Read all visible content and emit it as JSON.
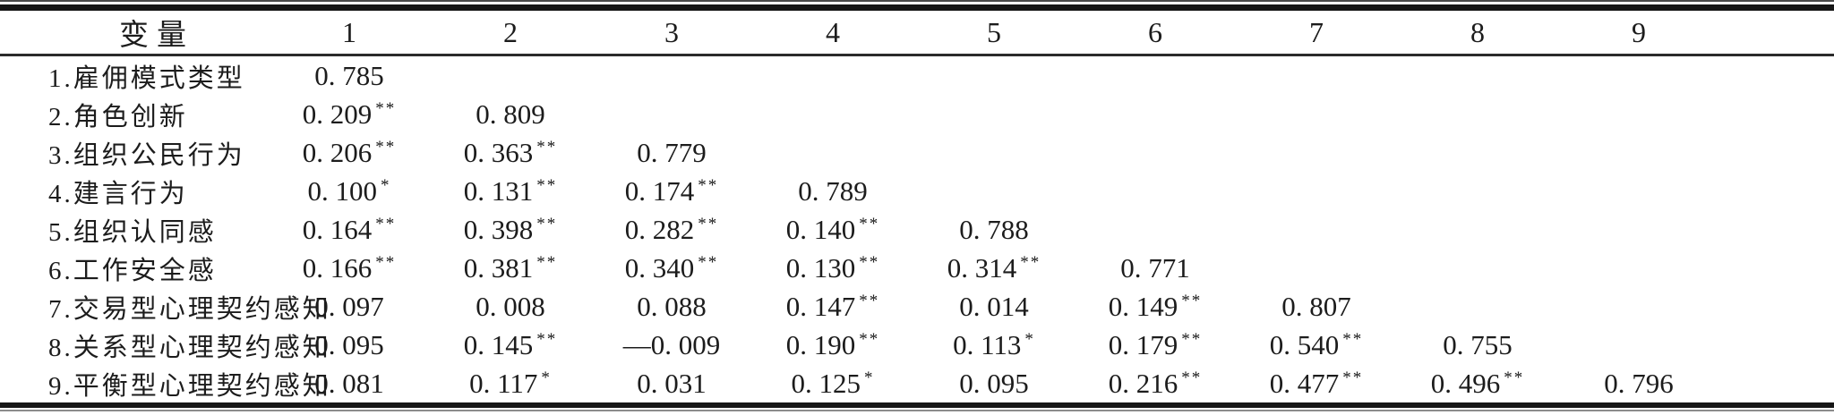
{
  "table": {
    "header": [
      "变量",
      "1",
      "2",
      "3",
      "4",
      "5",
      "6",
      "7",
      "8",
      "9"
    ],
    "rows": [
      {
        "label": "1.雇佣模式类型",
        "cells": [
          {
            "v": "0.785",
            "sig": ""
          }
        ]
      },
      {
        "label": "2.角色创新",
        "cells": [
          {
            "v": "0.209",
            "sig": "**"
          },
          {
            "v": "0.809",
            "sig": ""
          }
        ]
      },
      {
        "label": "3.组织公民行为",
        "cells": [
          {
            "v": "0.206",
            "sig": "**"
          },
          {
            "v": "0.363",
            "sig": "**"
          },
          {
            "v": "0.779",
            "sig": ""
          }
        ]
      },
      {
        "label": "4.建言行为",
        "cells": [
          {
            "v": "0.100",
            "sig": "*"
          },
          {
            "v": "0.131",
            "sig": "**"
          },
          {
            "v": "0.174",
            "sig": "**"
          },
          {
            "v": "0.789",
            "sig": ""
          }
        ]
      },
      {
        "label": "5.组织认同感",
        "cells": [
          {
            "v": "0.164",
            "sig": "**"
          },
          {
            "v": "0.398",
            "sig": "**"
          },
          {
            "v": "0.282",
            "sig": "**"
          },
          {
            "v": "0.140",
            "sig": "**"
          },
          {
            "v": "0.788",
            "sig": ""
          }
        ]
      },
      {
        "label": "6.工作安全感",
        "cells": [
          {
            "v": "0.166",
            "sig": "**"
          },
          {
            "v": "0.381",
            "sig": "**"
          },
          {
            "v": "0.340",
            "sig": "**"
          },
          {
            "v": "0.130",
            "sig": "**"
          },
          {
            "v": "0.314",
            "sig": "**"
          },
          {
            "v": "0.771",
            "sig": ""
          }
        ]
      },
      {
        "label": "7.交易型心理契约感知",
        "cells": [
          {
            "v": "0.097",
            "sig": ""
          },
          {
            "v": "0.008",
            "sig": ""
          },
          {
            "v": "0.088",
            "sig": ""
          },
          {
            "v": "0.147",
            "sig": "**"
          },
          {
            "v": "0.014",
            "sig": ""
          },
          {
            "v": "0.149",
            "sig": "**"
          },
          {
            "v": "0.807",
            "sig": ""
          }
        ]
      },
      {
        "label": "8.关系型心理契约感知",
        "cells": [
          {
            "v": "0.095",
            "sig": ""
          },
          {
            "v": "0.145",
            "sig": "**"
          },
          {
            "v": "-0.009",
            "sig": ""
          },
          {
            "v": "0.190",
            "sig": "**"
          },
          {
            "v": "0.113",
            "sig": "*"
          },
          {
            "v": "0.179",
            "sig": "**"
          },
          {
            "v": "0.540",
            "sig": "**"
          },
          {
            "v": "0.755",
            "sig": ""
          }
        ]
      },
      {
        "label": "9.平衡型心理契约感知",
        "cells": [
          {
            "v": "0.081",
            "sig": ""
          },
          {
            "v": "0.117",
            "sig": "*"
          },
          {
            "v": "0.031",
            "sig": ""
          },
          {
            "v": "0.125",
            "sig": "*"
          },
          {
            "v": "0.095",
            "sig": ""
          },
          {
            "v": "0.216",
            "sig": "**"
          },
          {
            "v": "0.477",
            "sig": "**"
          },
          {
            "v": "0.496",
            "sig": "**"
          },
          {
            "v": "0.796",
            "sig": ""
          }
        ]
      }
    ]
  },
  "colors": {
    "text": "#1c1c1c",
    "thick_rule": "#161616",
    "middle_rule": "#2b2b2b",
    "background": "#ffffff"
  }
}
